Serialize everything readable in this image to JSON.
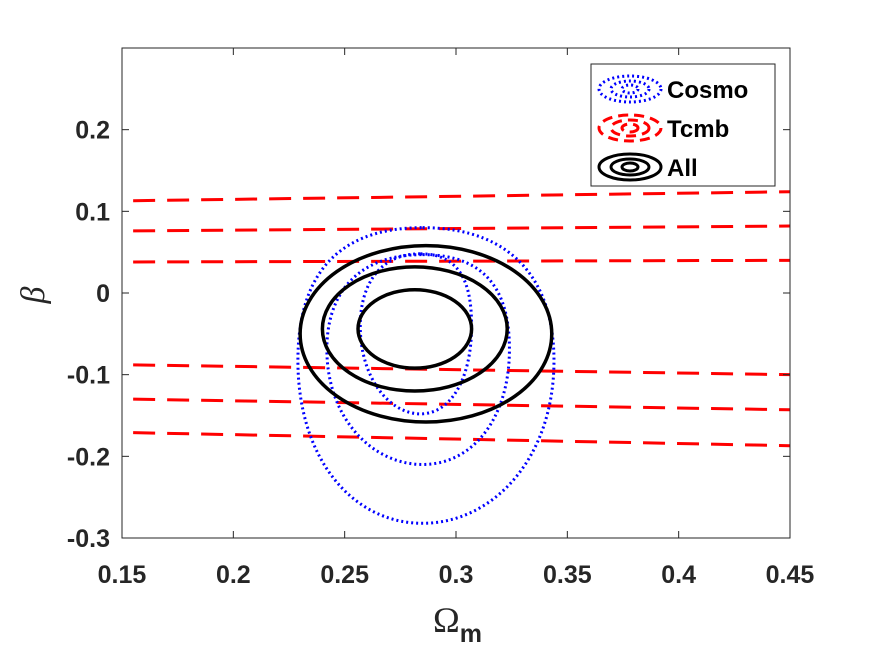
{
  "chart_data": {
    "type": "contour",
    "xlabel": "Ω",
    "xlabel_sub": "m",
    "ylabel": "β",
    "xlim": [
      0.15,
      0.45
    ],
    "ylim": [
      -0.3,
      0.3
    ],
    "xticks": [
      0.15,
      0.2,
      0.25,
      0.3,
      0.35,
      0.4,
      0.45
    ],
    "xtick_labels": [
      "0.15",
      "0.2",
      "0.25",
      "0.3",
      "0.35",
      "0.4",
      "0.45"
    ],
    "yticks": [
      -0.3,
      -0.2,
      -0.1,
      0,
      0.1,
      0.2
    ],
    "ytick_labels": [
      "-0.3",
      "-0.2",
      "-0.1",
      "0",
      "0.1",
      "0.2"
    ],
    "legend_position": "top-right",
    "legend": [
      {
        "label": "Cosmo",
        "color": "#0000ff",
        "style": "dotted"
      },
      {
        "label": "Tcmb",
        "color": "#ff0000",
        "style": "dashed"
      },
      {
        "label": "All",
        "color": "#000000",
        "style": "solid"
      }
    ],
    "series": [
      {
        "name": "Cosmo",
        "color": "#0000ff",
        "style": "dotted",
        "contours": [
          {
            "level": "1sigma",
            "x_range": [
              0.257,
              0.307
            ],
            "y_range": [
              -0.148,
              0.048
            ],
            "peak_x": 0.284
          },
          {
            "level": "2sigma",
            "x_range": [
              0.242,
              0.324
            ],
            "y_range": [
              -0.21,
              0.047
            ],
            "peak_x": 0.285
          },
          {
            "level": "3sigma",
            "x_range": [
              0.229,
              0.344
            ],
            "y_range": [
              -0.282,
              0.08
            ],
            "peak_x": 0.285
          }
        ]
      },
      {
        "name": "Tcmb",
        "color": "#ff0000",
        "style": "dashed",
        "lines": [
          {
            "x": [
              0.155,
              0.45
            ],
            "y": [
              0.113,
              0.124
            ]
          },
          {
            "x": [
              0.155,
              0.45
            ],
            "y": [
              0.076,
              0.082
            ]
          },
          {
            "x": [
              0.155,
              0.45
            ],
            "y": [
              0.038,
              0.04
            ]
          },
          {
            "x": [
              0.155,
              0.45
            ],
            "y": [
              -0.088,
              -0.1
            ]
          },
          {
            "x": [
              0.155,
              0.45
            ],
            "y": [
              -0.13,
              -0.143
            ]
          },
          {
            "x": [
              0.155,
              0.45
            ],
            "y": [
              -0.171,
              -0.187
            ]
          }
        ]
      },
      {
        "name": "All",
        "color": "#000000",
        "style": "solid",
        "contours": [
          {
            "level": "1sigma",
            "center": [
              0.2815,
              -0.044
            ],
            "half_width": 0.0255,
            "half_height": 0.048
          },
          {
            "level": "2sigma",
            "center": [
              0.2815,
              -0.044
            ],
            "half_width": 0.0415,
            "half_height": 0.076
          },
          {
            "level": "3sigma",
            "center": [
              0.2865,
              -0.05
            ],
            "half_width": 0.0565,
            "half_height": 0.108
          }
        ]
      }
    ]
  }
}
